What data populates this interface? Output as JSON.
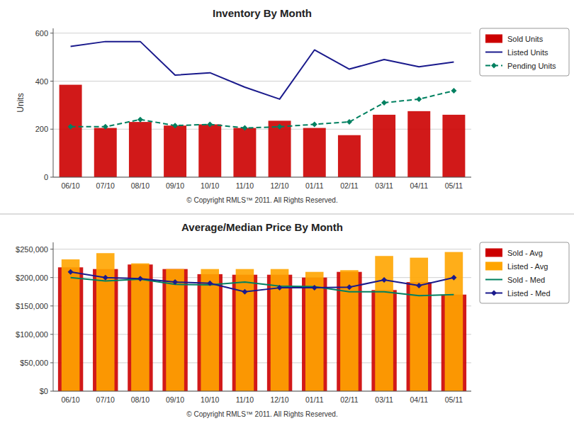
{
  "chart_data": [
    {
      "type": "bar",
      "title": "Inventory By Month",
      "y_label": "Units",
      "categories": [
        "06/10",
        "07/10",
        "08/10",
        "09/10",
        "10/10",
        "11/10",
        "12/10",
        "01/11",
        "02/11",
        "03/11",
        "04/11",
        "05/11"
      ],
      "series": [
        {
          "name": "Sold Units",
          "type": "bar",
          "color": "#cc0000",
          "values": [
            385,
            205,
            230,
            215,
            220,
            205,
            235,
            205,
            175,
            260,
            275,
            260
          ]
        },
        {
          "name": "Listed Units",
          "type": "line",
          "color": "#1a1a8c",
          "line_style": "solid",
          "values": [
            545,
            565,
            565,
            425,
            435,
            375,
            325,
            530,
            450,
            490,
            460,
            480
          ]
        },
        {
          "name": "Pending Units",
          "type": "line",
          "color": "#008060",
          "line_style": "dashed",
          "marker": "diamond",
          "values": [
            210,
            210,
            240,
            215,
            220,
            205,
            210,
            220,
            230,
            310,
            325,
            360
          ]
        }
      ],
      "ylim": [
        0,
        620
      ],
      "yticks": [
        0,
        200,
        400,
        600
      ],
      "grid": true,
      "legend": "right",
      "annotation": "© Copyright RMLS™ 2011.  All Rights Reserved."
    },
    {
      "type": "bar",
      "title": "Average/Median Price By Month",
      "categories": [
        "06/10",
        "07/10",
        "08/10",
        "09/10",
        "10/10",
        "11/10",
        "12/10",
        "01/11",
        "02/11",
        "03/11",
        "04/11",
        "05/11"
      ],
      "series": [
        {
          "name": "Sold - Avg",
          "type": "bar",
          "color": "#cc0000",
          "values": [
            218000,
            215000,
            223000,
            215000,
            206000,
            205000,
            205000,
            200000,
            210000,
            178000,
            192000,
            170000
          ]
        },
        {
          "name": "Listed - Avg",
          "type": "bar",
          "color": "#ffa500",
          "values": [
            232000,
            243000,
            225000,
            215000,
            215000,
            215000,
            215000,
            210000,
            213000,
            238000,
            235000,
            245000
          ]
        },
        {
          "name": "Sold - Med",
          "type": "line",
          "color": "#008060",
          "line_style": "solid",
          "values": [
            200000,
            194000,
            197000,
            188000,
            187000,
            192000,
            185000,
            184000,
            175000,
            175000,
            168000,
            170000
          ]
        },
        {
          "name": "Listed - Med",
          "type": "line",
          "color": "#1a1a8c",
          "line_style": "solid",
          "marker": "diamond",
          "values": [
            210000,
            200000,
            198000,
            192000,
            190000,
            175000,
            182000,
            182000,
            183000,
            196000,
            186000,
            200000
          ]
        }
      ],
      "ylim": [
        0,
        262000
      ],
      "yticks": [
        {
          "value": 0,
          "label": "$0"
        },
        {
          "value": 50000,
          "label": "$50,000"
        },
        {
          "value": 100000,
          "label": "$100,000"
        },
        {
          "value": 150000,
          "label": "$150,000"
        },
        {
          "value": 200000,
          "label": "$200,000"
        },
        {
          "value": 250000,
          "label": "$250,000"
        }
      ],
      "grid": true,
      "legend": "right",
      "annotation": "© Copyright RMLS™ 2011.  All Rights Reserved."
    }
  ]
}
